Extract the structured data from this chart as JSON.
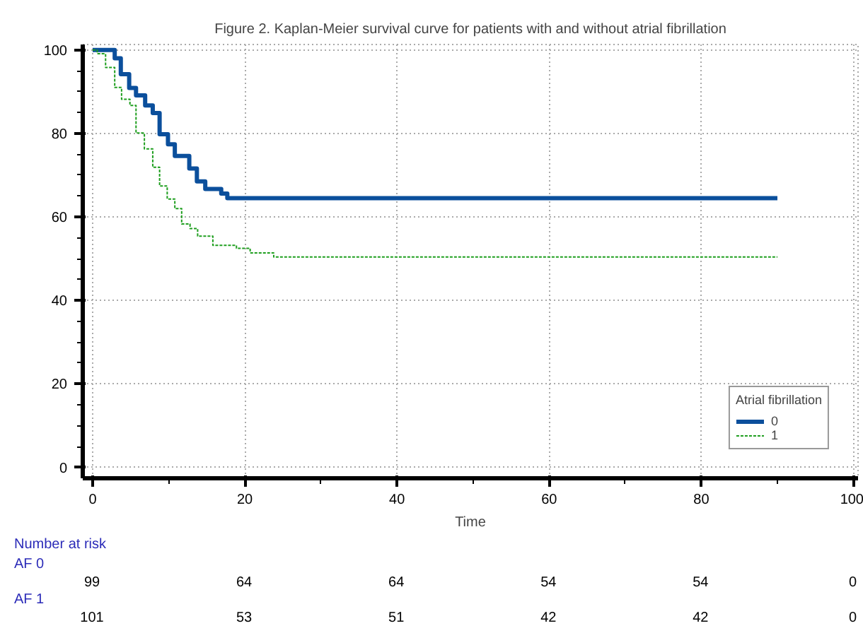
{
  "chart_data": {
    "type": "step",
    "title": "Figure 2. Kaplan-Meier survival curve for patients with and without atrial fibrillation",
    "xlabel": "Time",
    "legend_title": "Atrial fibrillation",
    "xlim": [
      -1.3,
      100.6
    ],
    "ylim": [
      -2.6,
      101.3
    ],
    "xticks": [
      0,
      20,
      40,
      60,
      80,
      100
    ],
    "yticks": [
      0,
      20,
      40,
      60,
      80,
      100
    ],
    "grid": true,
    "legend": "bottom right",
    "series": [
      {
        "name": "0",
        "color": "#0b4f9c",
        "line_style": "solid",
        "x": [
          0,
          2.9,
          3.7,
          4.8,
          5.7,
          6.9,
          7.9,
          8.8,
          9.9,
          10.8,
          12.7,
          13.7,
          14.8,
          16.9,
          17.7,
          90
        ],
        "values": [
          100,
          98,
          94.2,
          90.9,
          89.1,
          86.7,
          84.9,
          79.8,
          77.4,
          74.6,
          71.6,
          68.5,
          66.7,
          65.6,
          64.5,
          64.5
        ]
      },
      {
        "name": "1",
        "color": "#1e9e1e",
        "line_style": "dashed",
        "x": [
          0,
          0.6,
          1.7,
          2.9,
          3.8,
          4.9,
          5.7,
          6.8,
          7.9,
          8.8,
          9.8,
          10.8,
          11.7,
          12.8,
          13.8,
          15.8,
          18.9,
          20.7,
          23.8,
          90
        ],
        "values": [
          100,
          99.1,
          95.8,
          91,
          88.2,
          86.7,
          80.1,
          76.3,
          71.9,
          67.4,
          64.3,
          62,
          58.3,
          57.2,
          55.4,
          53.2,
          52.5,
          51.4,
          50.4,
          50.4
        ]
      }
    ],
    "annotations": [
      "Number at risk",
      "AF 0",
      "99",
      "64",
      "64",
      "54",
      "54",
      "0",
      "AF 1",
      "101",
      "53",
      "51",
      "42",
      "42",
      "0"
    ]
  }
}
